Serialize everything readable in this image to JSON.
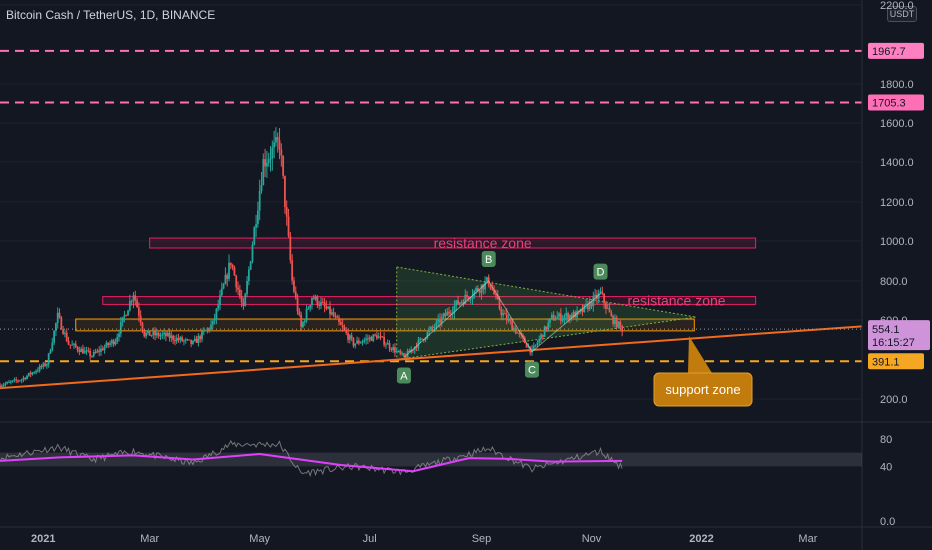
{
  "header": {
    "title": "Bitcoin Cash / TetherUS, 1D, BINANCE",
    "currency": "USDT"
  },
  "price_scale": {
    "ticks": [
      "2200.0",
      "1800.0",
      "1600.0",
      "1400.0",
      "1200.0",
      "1000.0",
      "800.0",
      "600.0",
      "200.0"
    ],
    "tick_values": [
      2200,
      1800,
      1600,
      1400,
      1200,
      1000,
      800,
      600,
      200
    ],
    "badges": {
      "line_1967": "1967.7",
      "line_1705": "1705.3",
      "current_price": "554.1",
      "countdown": "16:15:27",
      "line_391": "391.1"
    }
  },
  "rsi_scale": {
    "ticks": [
      "80",
      "40",
      "0.0"
    ],
    "tick_values": [
      80,
      40,
      0
    ]
  },
  "time_axis": {
    "labels": [
      "2021",
      "Mar",
      "May",
      "Jul",
      "Sep",
      "Nov",
      "2022",
      "Mar"
    ]
  },
  "annotations": {
    "resistance_upper": "resistance zone",
    "resistance_lower": "resistance zone",
    "support": "support zone",
    "points": [
      "A",
      "B",
      "C",
      "D"
    ]
  },
  "colors": {
    "background": "#131722",
    "up_candle": "#26a69a",
    "down_candle": "#ef5350",
    "pink_line": "#ff6fb5",
    "orange_line": "#f26b1d",
    "dashed_orange": "#f5a623",
    "resistance_box": "#e91e63",
    "support_box": "#ff9800",
    "triangle": "#4caf50",
    "rsi_line": "#e040fb",
    "price_badge": "#ce93d8",
    "support_callout": "#c27c0e"
  },
  "chart_data": {
    "type": "candlestick",
    "title": "Bitcoin Cash / TetherUS, 1D, BINANCE",
    "y_unit": "USDT",
    "ylim": [
      100,
      2250
    ],
    "x_range": [
      "2020-12-08",
      "2022-03-31"
    ],
    "horizontal_lines": [
      1967.7,
      1705.3,
      391.1
    ],
    "current_price": 554.1,
    "trendline": {
      "from": [
        "2020-12-08",
        255
      ],
      "to": [
        "2022-03-31",
        568
      ]
    },
    "resistance_zones": [
      {
        "from": "2021-03-01",
        "to": "2022-01-31",
        "low": 965,
        "high": 1015,
        "label": "resistance zone"
      },
      {
        "from": "2021-02-03",
        "to": "2022-01-31",
        "low": 680,
        "high": 720,
        "label": "resistance zone"
      }
    ],
    "support_zone": {
      "from": "2021-01-19",
      "to": "2021-12-28",
      "low": 545,
      "high": 605,
      "label": "support zone"
    },
    "triangle": [
      [
        "2021-07-16",
        870
      ],
      [
        "2021-12-29",
        615
      ],
      [
        "2021-07-16",
        400
      ]
    ],
    "wave_points": [
      {
        "label": "A",
        "date": "2021-07-20",
        "price": 410
      },
      {
        "label": "B",
        "date": "2021-09-05",
        "price": 800
      },
      {
        "label": "C",
        "date": "2021-09-29",
        "price": 440
      },
      {
        "label": "D",
        "date": "2021-11-06",
        "price": 735
      }
    ],
    "price_path": [
      [
        "2020-12-08",
        270
      ],
      [
        "2020-12-20",
        300
      ],
      [
        "2021-01-03",
        380
      ],
      [
        "2021-01-09",
        620
      ],
      [
        "2021-01-15",
        480
      ],
      [
        "2021-01-28",
        420
      ],
      [
        "2021-02-10",
        500
      ],
      [
        "2021-02-20",
        740
      ],
      [
        "2021-02-26",
        530
      ],
      [
        "2021-03-10",
        520
      ],
      [
        "2021-03-25",
        480
      ],
      [
        "2021-04-05",
        580
      ],
      [
        "2021-04-15",
        900
      ],
      [
        "2021-04-22",
        650
      ],
      [
        "2021-05-03",
        1400
      ],
      [
        "2021-05-12",
        1500
      ],
      [
        "2021-05-19",
        800
      ],
      [
        "2021-05-24",
        560
      ],
      [
        "2021-05-30",
        720
      ],
      [
        "2021-06-10",
        630
      ],
      [
        "2021-06-22",
        480
      ],
      [
        "2021-07-05",
        520
      ],
      [
        "2021-07-20",
        410
      ],
      [
        "2021-08-05",
        560
      ],
      [
        "2021-08-18",
        680
      ],
      [
        "2021-09-05",
        800
      ],
      [
        "2021-09-12",
        640
      ],
      [
        "2021-09-29",
        440
      ],
      [
        "2021-10-10",
        610
      ],
      [
        "2021-10-25",
        630
      ],
      [
        "2021-11-06",
        735
      ],
      [
        "2021-11-12",
        610
      ],
      [
        "2021-11-18",
        554
      ]
    ],
    "rsi": {
      "ylim": [
        0,
        100
      ],
      "band": [
        40,
        60
      ],
      "path": [
        [
          "2020-12-08",
          52
        ],
        [
          "2021-01-09",
          68
        ],
        [
          "2021-01-28",
          50
        ],
        [
          "2021-02-20",
          62
        ],
        [
          "2021-03-25",
          44
        ],
        [
          "2021-04-15",
          72
        ],
        [
          "2021-05-12",
          72
        ],
        [
          "2021-05-24",
          30
        ],
        [
          "2021-06-22",
          40
        ],
        [
          "2021-07-20",
          32
        ],
        [
          "2021-09-05",
          66
        ],
        [
          "2021-09-29",
          36
        ],
        [
          "2021-11-06",
          62
        ],
        [
          "2021-11-18",
          38
        ]
      ],
      "ma_path": [
        [
          "2020-12-08",
          48
        ],
        [
          "2021-01-10",
          53
        ],
        [
          "2021-02-20",
          56
        ],
        [
          "2021-03-25",
          50
        ],
        [
          "2021-05-01",
          58
        ],
        [
          "2021-06-15",
          42
        ],
        [
          "2021-07-25",
          33
        ],
        [
          "2021-08-25",
          52
        ],
        [
          "2021-09-15",
          51
        ],
        [
          "2021-10-10",
          47
        ],
        [
          "2021-11-18",
          48
        ]
      ]
    }
  }
}
